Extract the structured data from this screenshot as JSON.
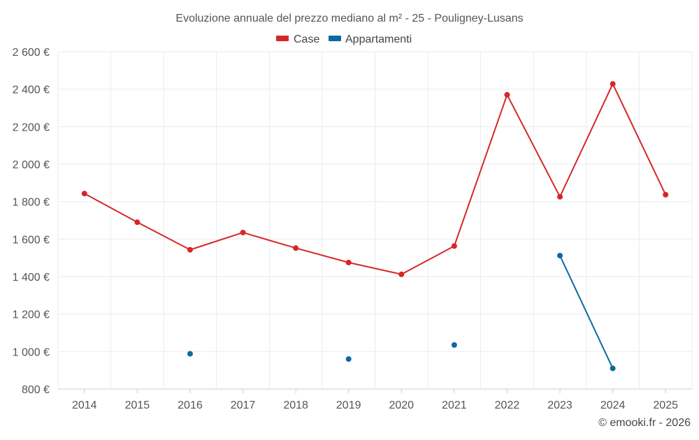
{
  "chart_data": {
    "type": "line",
    "title": "Evoluzione annuale del prezzo mediano al m² - 25 - Pouligney-Lusans",
    "x": [
      "2014",
      "2015",
      "2016",
      "2017",
      "2018",
      "2019",
      "2020",
      "2021",
      "2022",
      "2023",
      "2024",
      "2025"
    ],
    "ylim": [
      800,
      2600
    ],
    "yticks": [
      800,
      1000,
      1200,
      1400,
      1600,
      1800,
      2000,
      2200,
      2400,
      2600
    ],
    "ytick_labels": [
      "800 €",
      "1 000 €",
      "1 200 €",
      "1 400 €",
      "1 600 €",
      "1 800 €",
      "2 000 €",
      "2 200 €",
      "2 400 €",
      "2 600 €"
    ],
    "grid": true,
    "legend_position": "top-center",
    "series": [
      {
        "name": "Case",
        "color": "#d62728",
        "values": [
          1843,
          1690,
          1543,
          1635,
          1552,
          1475,
          1412,
          1563,
          2370,
          1826,
          2428,
          1837
        ]
      },
      {
        "name": "Appartamenti",
        "color": "#0b6aa2",
        "values": [
          null,
          null,
          988,
          null,
          null,
          960,
          null,
          1035,
          null,
          1512,
          910,
          null
        ]
      }
    ],
    "credit": "© emooki.fr - 2026"
  }
}
